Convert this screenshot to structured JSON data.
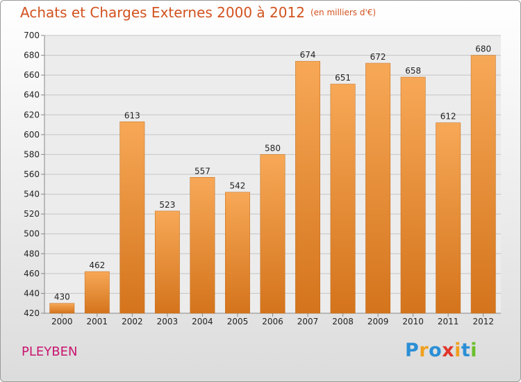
{
  "title": "Achats et Charges Externes 2000 à 2012",
  "subtitle": "(en milliers d'€)",
  "commune": "PLEYBEN",
  "logo": {
    "letters": [
      "P",
      "r",
      "o",
      "x",
      "i",
      "t",
      "i"
    ],
    "colors": [
      "#2b8fd6",
      "#f0a020",
      "#2b8fd6",
      "#e0362c",
      "#f0a020",
      "#2b8fd6",
      "#6abf2a"
    ]
  },
  "chart_data": {
    "type": "bar",
    "categories": [
      "2000",
      "2001",
      "2002",
      "2003",
      "2004",
      "2005",
      "2006",
      "2007",
      "2008",
      "2009",
      "2010",
      "2011",
      "2012"
    ],
    "values": [
      430,
      462,
      613,
      523,
      557,
      542,
      580,
      674,
      651,
      672,
      658,
      612,
      680
    ],
    "ylim": [
      420,
      700
    ],
    "yticks": [
      420,
      440,
      460,
      480,
      500,
      520,
      540,
      560,
      580,
      600,
      620,
      640,
      660,
      680,
      700
    ],
    "grid": true,
    "bar_color_top": "#f7a857",
    "bar_color_bottom": "#d4741c"
  }
}
